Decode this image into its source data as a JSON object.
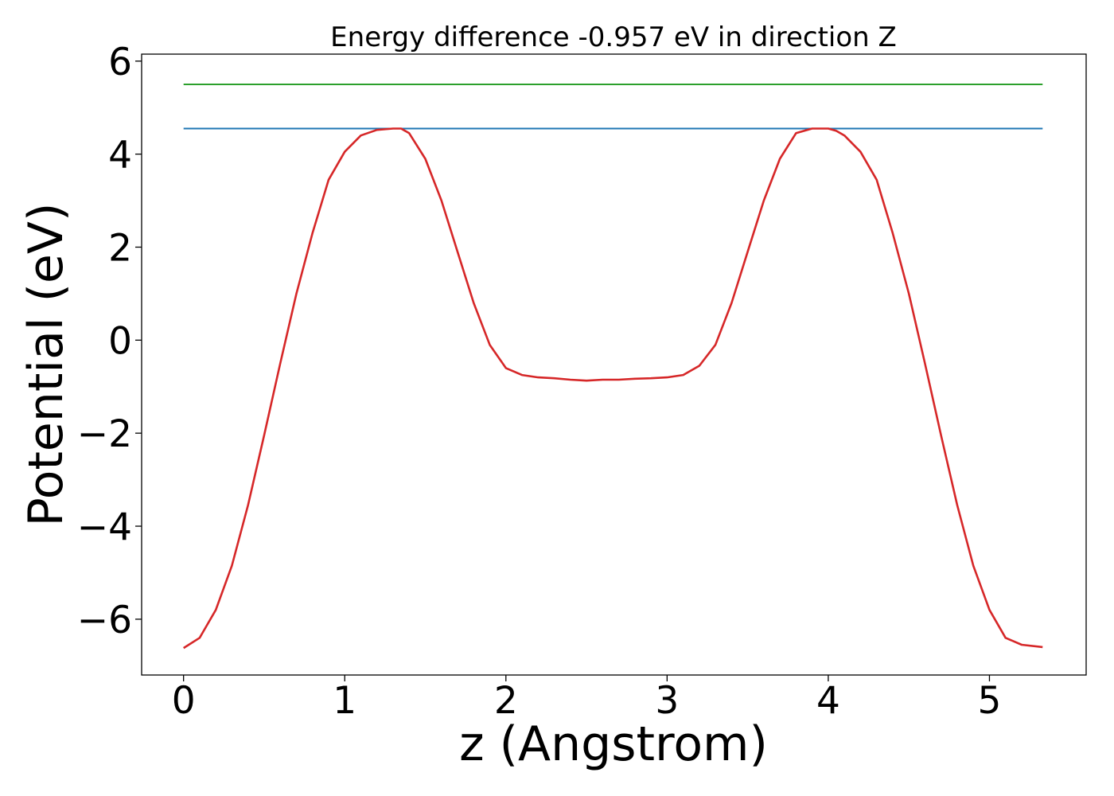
{
  "chart_data": {
    "type": "line",
    "title": "Energy difference -0.957 eV in direction Z",
    "xlabel": "z (Angstrom)",
    "ylabel": "Potential (eV)",
    "xlim": [
      -0.26,
      5.6
    ],
    "ylim": [
      -7.2,
      6.15
    ],
    "xticks": [
      0,
      1,
      2,
      3,
      4,
      5
    ],
    "xtick_labels": [
      "0",
      "1",
      "2",
      "3",
      "4",
      "5"
    ],
    "yticks": [
      -6,
      -4,
      -2,
      0,
      2,
      4,
      6
    ],
    "ytick_labels": [
      "−6",
      "−4",
      "−2",
      "0",
      "2",
      "4",
      "6"
    ],
    "grid": false,
    "colors": {
      "potential": "#d62728",
      "upper_level": "#2ca02c",
      "lower_level": "#1f77b4"
    },
    "series": [
      {
        "key": "upper_level",
        "x": [
          0,
          5.33
        ],
        "y": [
          5.5,
          5.5
        ]
      },
      {
        "key": "lower_level",
        "x": [
          0,
          5.33
        ],
        "y": [
          4.55,
          4.55
        ]
      },
      {
        "key": "potential",
        "x": [
          0,
          0.1,
          0.2,
          0.3,
          0.4,
          0.5,
          0.6,
          0.7,
          0.8,
          0.9,
          1.0,
          1.1,
          1.2,
          1.3,
          1.35,
          1.4,
          1.5,
          1.6,
          1.7,
          1.8,
          1.9,
          2.0,
          2.1,
          2.2,
          2.3,
          2.4,
          2.5,
          2.6,
          2.7,
          2.8,
          2.9,
          3.0,
          3.1,
          3.2,
          3.3,
          3.4,
          3.5,
          3.6,
          3.7,
          3.8,
          3.9,
          4.0,
          4.05,
          4.1,
          4.2,
          4.3,
          4.4,
          4.5,
          4.6,
          4.7,
          4.8,
          4.9,
          5.0,
          5.1,
          5.2,
          5.33
        ],
        "y": [
          -6.62,
          -6.4,
          -5.8,
          -4.85,
          -3.55,
          -2.05,
          -0.5,
          1.0,
          2.3,
          3.45,
          4.05,
          4.4,
          4.52,
          4.55,
          4.55,
          4.45,
          3.9,
          3.0,
          1.9,
          0.8,
          -0.1,
          -0.6,
          -0.75,
          -0.8,
          -0.82,
          -0.85,
          -0.87,
          -0.85,
          -0.85,
          -0.83,
          -0.82,
          -0.8,
          -0.75,
          -0.55,
          -0.1,
          0.8,
          1.9,
          3.0,
          3.9,
          4.45,
          4.55,
          4.55,
          4.5,
          4.4,
          4.05,
          3.45,
          2.3,
          1.0,
          -0.5,
          -2.05,
          -3.55,
          -4.85,
          -5.8,
          -6.4,
          -6.55,
          -6.6
        ]
      }
    ]
  }
}
